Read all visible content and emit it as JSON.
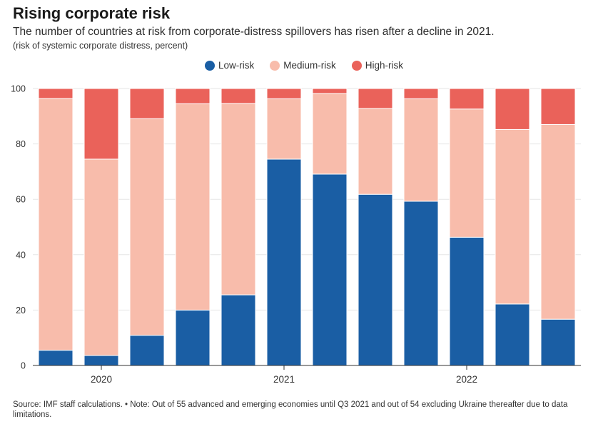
{
  "title": "Rising corporate risk",
  "subtitle": "The number of countries at risk from corporate-distress spillovers has risen after a decline in 2021.",
  "units": "(risk of systemic corporate distress, percent)",
  "source": "Source: IMF staff calculations. • Note: Out of 55 advanced and emerging economies until Q3 2021 and out of 54 excluding Ukraine thereafter due to data limitations.",
  "colors": {
    "low": "#1a5ea4",
    "medium": "#f8bcab",
    "high": "#ea625a"
  },
  "chart_data": {
    "type": "bar",
    "stacked": true,
    "x_tick_labels": [
      "2020",
      "2021",
      "2022"
    ],
    "x_tick_positions": [
      1.5,
      5.5,
      9.5
    ],
    "ylim": [
      0,
      100
    ],
    "yticks": [
      0,
      20,
      40,
      60,
      80,
      100
    ],
    "grid": true,
    "legend_position": "top-center",
    "series": [
      {
        "name": "Low-risk",
        "key": "low",
        "values": [
          5.5,
          3.6,
          10.9,
          20.0,
          25.5,
          74.5,
          69.1,
          61.8,
          59.3,
          46.3,
          22.2,
          16.7
        ]
      },
      {
        "name": "Medium-risk",
        "key": "medium",
        "values": [
          90.9,
          70.9,
          78.2,
          74.5,
          69.1,
          21.8,
          29.1,
          31.0,
          37.0,
          46.3,
          63.0,
          70.3
        ]
      },
      {
        "name": "High-risk",
        "key": "high",
        "values": [
          3.6,
          25.5,
          10.9,
          5.5,
          5.4,
          3.7,
          1.8,
          7.2,
          3.7,
          7.4,
          14.8,
          13.0
        ]
      }
    ]
  }
}
